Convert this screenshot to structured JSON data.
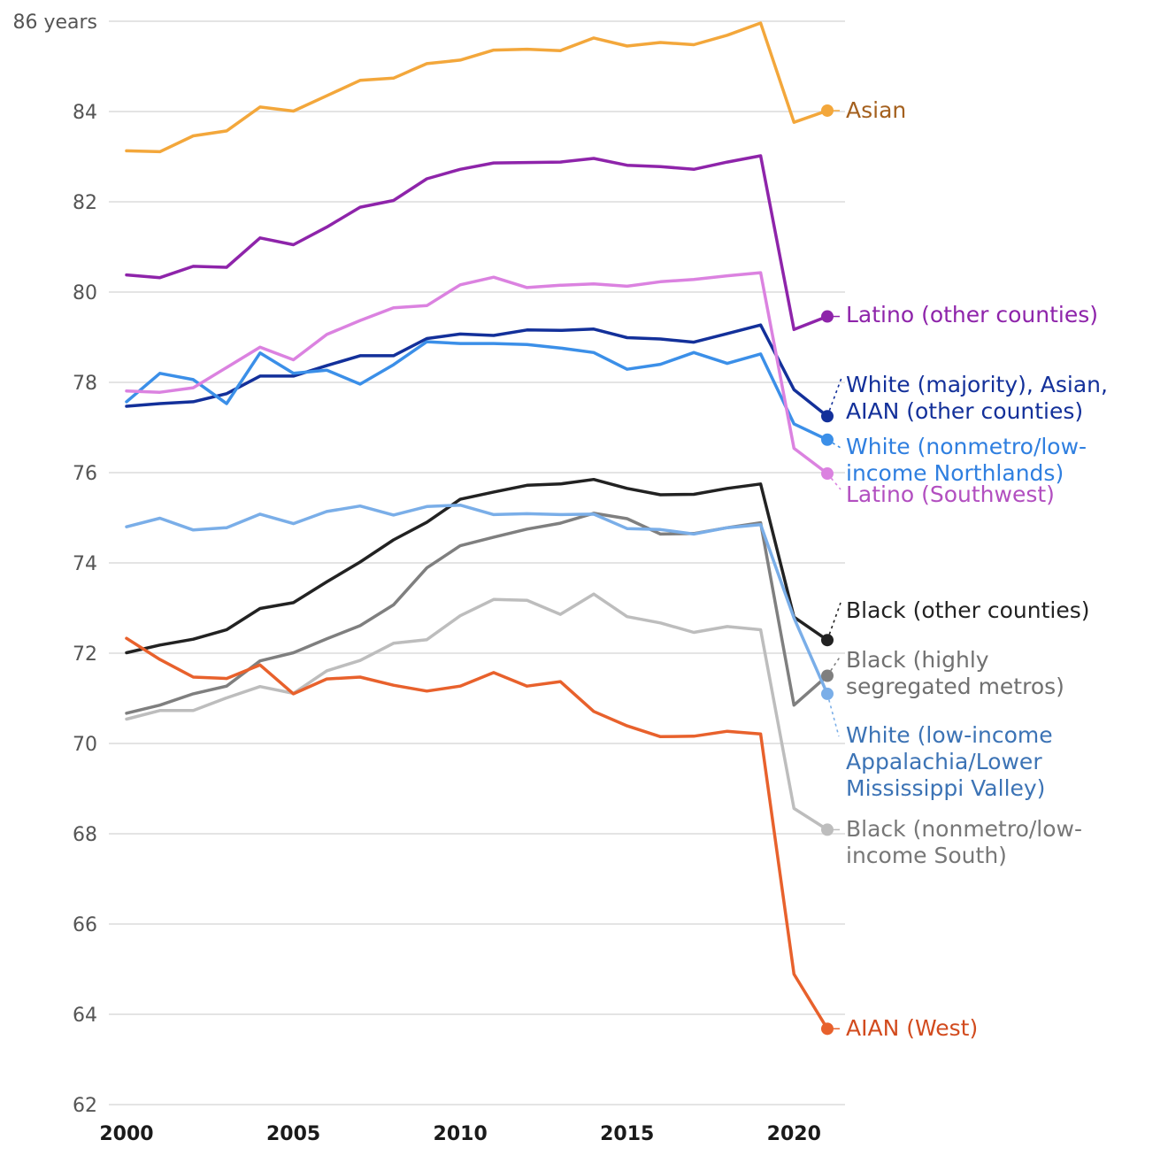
{
  "chart_data": {
    "type": "line",
    "title": "",
    "xlabel": "",
    "ylabel": "",
    "y_unit_label": "86 years",
    "x": [
      2000,
      2001,
      2002,
      2003,
      2004,
      2005,
      2006,
      2007,
      2008,
      2009,
      2010,
      2011,
      2012,
      2013,
      2014,
      2015,
      2016,
      2017,
      2018,
      2019,
      2020,
      2021
    ],
    "xlim": [
      2000,
      2021
    ],
    "ylim": [
      62,
      86
    ],
    "grid": true,
    "legend": "direct labels at right end of lines",
    "x_ticks": [
      2000,
      2005,
      2010,
      2015,
      2020
    ],
    "x_tick_labels": [
      "2000",
      "2005",
      "2010",
      "2015",
      "2020"
    ],
    "y_ticks": [
      62,
      64,
      66,
      68,
      70,
      72,
      74,
      76,
      78,
      80,
      82,
      84,
      86
    ],
    "y_tick_labels": [
      "62",
      "64",
      "66",
      "68",
      "70",
      "72",
      "74",
      "76",
      "78",
      "80",
      "82",
      "84",
      "86 years"
    ],
    "series": [
      {
        "name": "Asian",
        "label_lines": [
          "Asian"
        ],
        "color": "#f3a73b",
        "label_color": "#a4601e",
        "values": [
          83.13,
          83.11,
          83.46,
          83.57,
          84.1,
          84.01,
          84.35,
          84.69,
          84.74,
          85.06,
          85.14,
          85.36,
          85.38,
          85.35,
          85.63,
          85.45,
          85.53,
          85.48,
          85.69,
          85.96,
          83.76,
          84.02
        ]
      },
      {
        "name": "Latino (other counties)",
        "label_lines": [
          "Latino (other counties)"
        ],
        "color": "#8e24aa",
        "label_color": "#8e24aa",
        "values": [
          80.38,
          80.32,
          80.57,
          80.55,
          81.2,
          81.05,
          81.44,
          81.88,
          82.03,
          82.51,
          82.72,
          82.86,
          82.87,
          82.88,
          82.96,
          82.81,
          82.78,
          82.72,
          82.88,
          83.02,
          79.17,
          79.46
        ]
      },
      {
        "name": "White (majority), Asian, AIAN (other counties)",
        "label_lines": [
          "White (majority), Asian,",
          "AIAN (other counties)"
        ],
        "color": "#13309a",
        "label_color": "#13309a",
        "values": [
          77.47,
          77.53,
          77.57,
          77.75,
          78.14,
          78.14,
          78.37,
          78.59,
          78.59,
          78.97,
          79.07,
          79.04,
          79.16,
          79.15,
          79.18,
          78.99,
          78.96,
          78.89,
          79.08,
          79.27,
          77.84,
          77.25
        ]
      },
      {
        "name": "White (nonmetro/low-income Northlands)",
        "label_lines": [
          "White (nonmetro/low-",
          "income Northlands)"
        ],
        "color": "#3b8fe8",
        "label_color": "#2f7fe0",
        "values": [
          77.57,
          78.2,
          78.06,
          77.53,
          78.65,
          78.2,
          78.27,
          77.96,
          78.39,
          78.9,
          78.86,
          78.86,
          78.84,
          78.76,
          78.66,
          78.29,
          78.4,
          78.66,
          78.42,
          78.63,
          77.08,
          76.73
        ]
      },
      {
        "name": "Latino (Southwest)",
        "label_lines": [
          "Latino (Southwest)"
        ],
        "color": "#db82e0",
        "label_color": "#b24fc0",
        "values": [
          77.81,
          77.78,
          77.88,
          78.33,
          78.78,
          78.5,
          79.06,
          79.37,
          79.65,
          79.7,
          80.16,
          80.33,
          80.1,
          80.15,
          80.18,
          80.13,
          80.23,
          80.28,
          80.36,
          80.43,
          76.54,
          75.98
        ]
      },
      {
        "name": "Black (other counties)",
        "label_lines": [
          "Black (other counties)"
        ],
        "color": "#222222",
        "label_color": "#222222",
        "values": [
          72.01,
          72.18,
          72.31,
          72.52,
          72.99,
          73.12,
          73.58,
          74.02,
          74.51,
          74.9,
          75.41,
          75.57,
          75.72,
          75.75,
          75.85,
          75.65,
          75.51,
          75.52,
          75.65,
          75.75,
          72.8,
          72.29
        ]
      },
      {
        "name": "Black (highly segregated metros)",
        "label_lines": [
          "Black (highly",
          "segregated metros)"
        ],
        "color": "#7f7f7f",
        "label_color": "#707070",
        "values": [
          70.67,
          70.85,
          71.1,
          71.27,
          71.83,
          72.01,
          72.32,
          72.61,
          73.07,
          73.89,
          74.38,
          74.57,
          74.75,
          74.88,
          75.1,
          74.98,
          74.64,
          74.65,
          74.78,
          74.89,
          70.85,
          71.5
        ]
      },
      {
        "name": "White (low-income Appalachia/Lower Mississippi Valley)",
        "label_lines": [
          "White (low-income",
          "Appalachia/Lower",
          "Mississippi Valley)"
        ],
        "color": "#7aaee8",
        "label_color": "#3c73b5",
        "values": [
          74.8,
          74.99,
          74.73,
          74.78,
          75.08,
          74.87,
          75.14,
          75.26,
          75.06,
          75.25,
          75.28,
          75.07,
          75.09,
          75.07,
          75.08,
          74.76,
          74.74,
          74.64,
          74.78,
          74.85,
          72.78,
          71.1
        ]
      },
      {
        "name": "Black (nonmetro/low-income South)",
        "label_lines": [
          "Black (nonmetro/low-",
          "income South)"
        ],
        "color": "#bdbdbd",
        "label_color": "#777777",
        "values": [
          70.54,
          70.73,
          70.73,
          71.01,
          71.26,
          71.11,
          71.61,
          71.84,
          72.22,
          72.3,
          72.83,
          73.19,
          73.17,
          72.86,
          73.31,
          72.81,
          72.67,
          72.46,
          72.59,
          72.52,
          68.56,
          68.09
        ]
      },
      {
        "name": "AIAN (West)",
        "label_lines": [
          "AIAN (West)"
        ],
        "color": "#e8612c",
        "label_color": "#d24b1e",
        "values": [
          72.33,
          71.86,
          71.47,
          71.44,
          71.74,
          71.1,
          71.43,
          71.47,
          71.29,
          71.16,
          71.27,
          71.57,
          71.27,
          71.37,
          70.71,
          70.39,
          70.15,
          70.16,
          70.27,
          70.21,
          64.89,
          63.68
        ]
      }
    ]
  }
}
